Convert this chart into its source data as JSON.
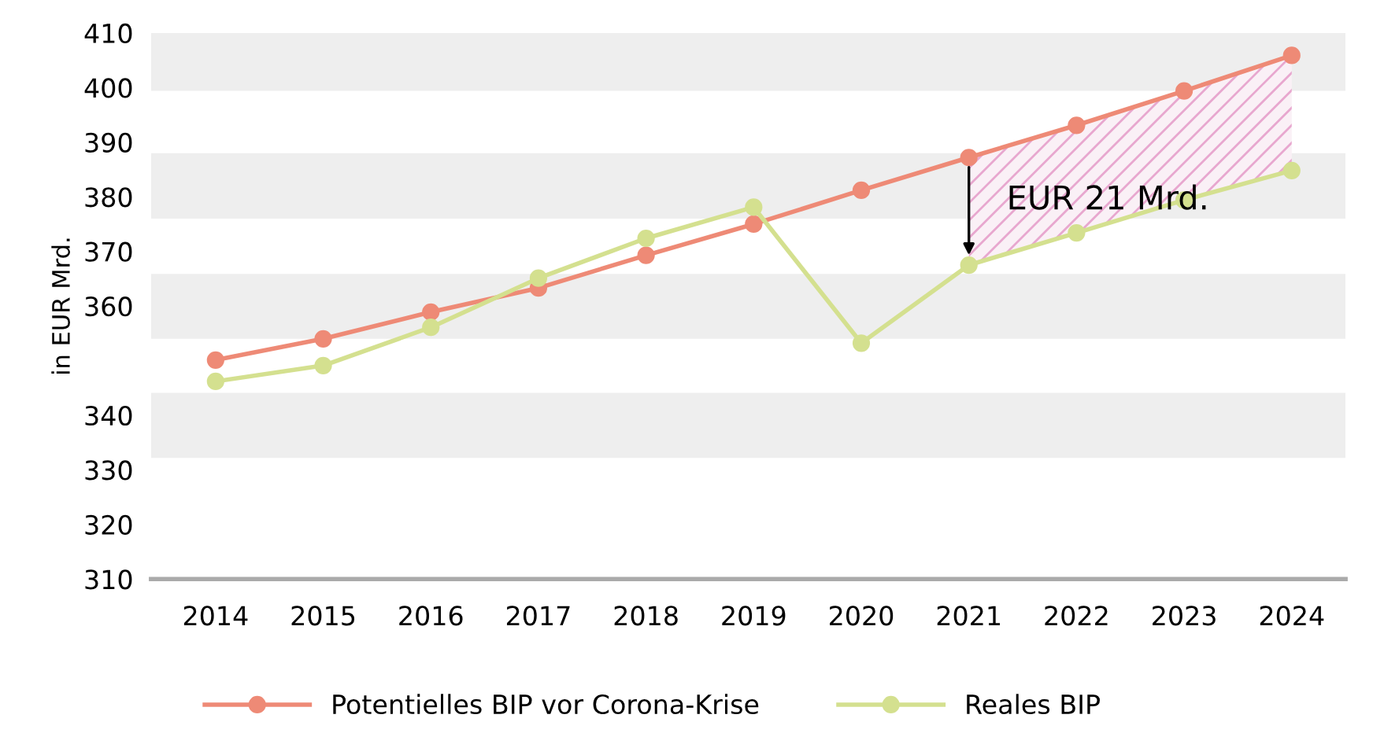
{
  "chart_data": {
    "type": "line",
    "ylabel": "in EUR Mrd.",
    "categories": [
      "2014",
      "2015",
      "2016",
      "2017",
      "2018",
      "2019",
      "2020",
      "2021",
      "2022",
      "2023",
      "2024"
    ],
    "series": [
      {
        "name": "Potentielles BIP vor Corona-Krise",
        "color": "#ee8a76",
        "values": [
          350.1,
          354.0,
          358.9,
          363.3,
          369.3,
          375.0,
          381.2,
          387.2,
          393.1,
          399.4,
          405.9
        ]
      },
      {
        "name": "Reales BIP",
        "color": "#d4e08f",
        "values": [
          346.2,
          349.1,
          356.1,
          365.1,
          372.4,
          378.1,
          353.2,
          367.5,
          373.4,
          379.4,
          384.8
        ],
        "lower": [
          null,
          null,
          null,
          null,
          null,
          null,
          null,
          367.5,
          373.4,
          379.4,
          384.8
        ],
        "upper": [
          null,
          null,
          null,
          null,
          null,
          null,
          null,
          387.2,
          393.1,
          399.4,
          405.9
        ]
      }
    ],
    "ylim": [
      310,
      410
    ],
    "yticks": [
      410,
      400,
      390,
      380,
      370,
      360,
      340,
      330,
      320,
      310
    ],
    "bands": [
      {
        "axis": "y",
        "from": 399.4,
        "to": 410,
        "color": "#eeeeee"
      },
      {
        "axis": "y",
        "from": 376.0,
        "to": 388.0,
        "color": "#eeeeee"
      },
      {
        "axis": "y",
        "from": 354.0,
        "to": 365.9,
        "color": "#eeeeee"
      },
      {
        "axis": "y",
        "from": 332.2,
        "to": 344.1,
        "color": "#eeeeee"
      }
    ],
    "annotations": [
      {
        "text": "EUR 21 Mrd.",
        "x": "2021",
        "y": 387.2
      }
    ],
    "marker": "circle",
    "line_style": "solid",
    "grid": false,
    "legend": "bottom"
  }
}
